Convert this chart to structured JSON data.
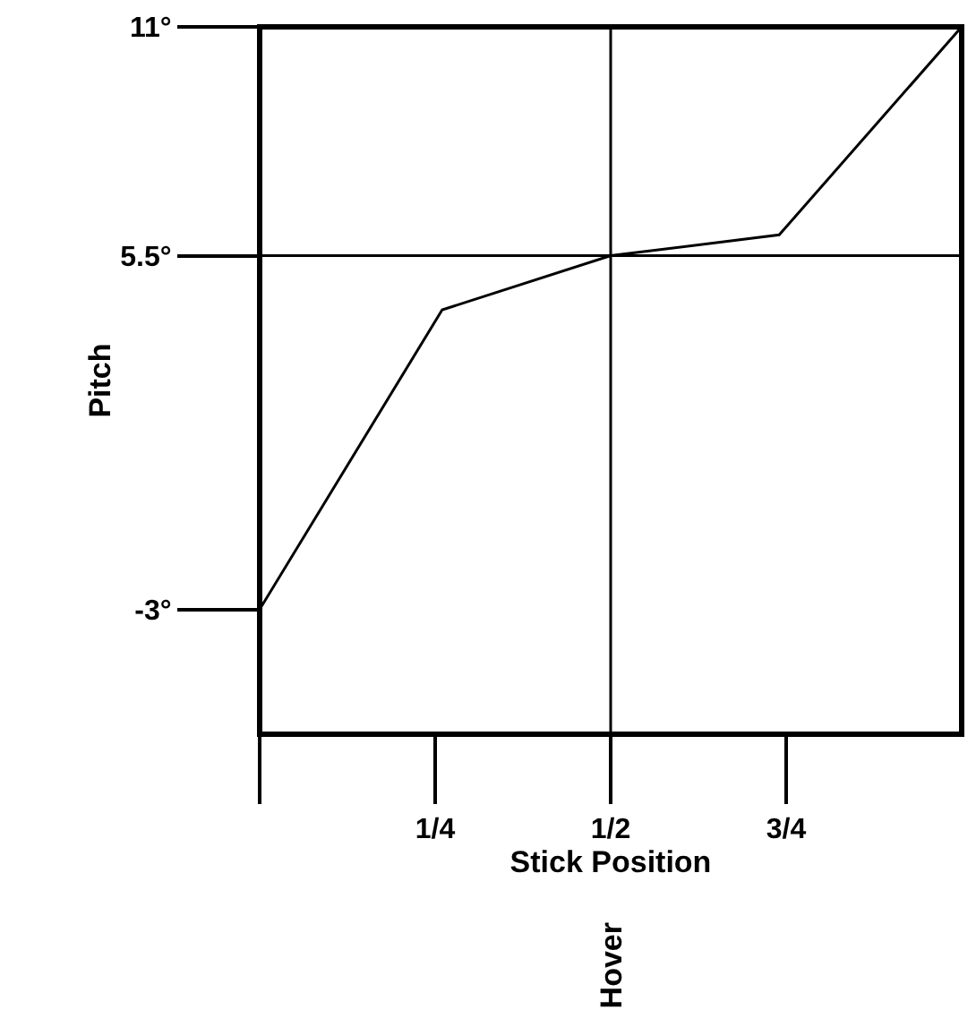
{
  "chart_data": {
    "type": "line",
    "xlabel": "Stick Position",
    "ylabel": "Pitch",
    "x": [
      0,
      0.26,
      0.5,
      0.74,
      1
    ],
    "series": [
      {
        "color": "#000000",
        "values": [
          -3,
          4.2,
          5.5,
          6.0,
          11
        ]
      }
    ],
    "xlim": [
      0,
      1
    ],
    "ylim": [
      -6,
      11
    ],
    "xticks": [
      {
        "value": 0,
        "label": null
      },
      {
        "value": 0.25,
        "label": "1/4"
      },
      {
        "value": 0.5,
        "label": "1/2"
      },
      {
        "value": 0.75,
        "label": "3/4"
      }
    ],
    "yticks": [
      {
        "value": -3,
        "label": "-3°"
      },
      {
        "value": 5.5,
        "label": "5.5°"
      },
      {
        "value": 11,
        "label": "11°"
      }
    ],
    "ref_lines": [
      {
        "axis": "x",
        "value": 0.5,
        "label": "Hover"
      },
      {
        "axis": "y",
        "value": 5.5,
        "label": null
      }
    ],
    "marker": "none",
    "line_style": "solid"
  }
}
